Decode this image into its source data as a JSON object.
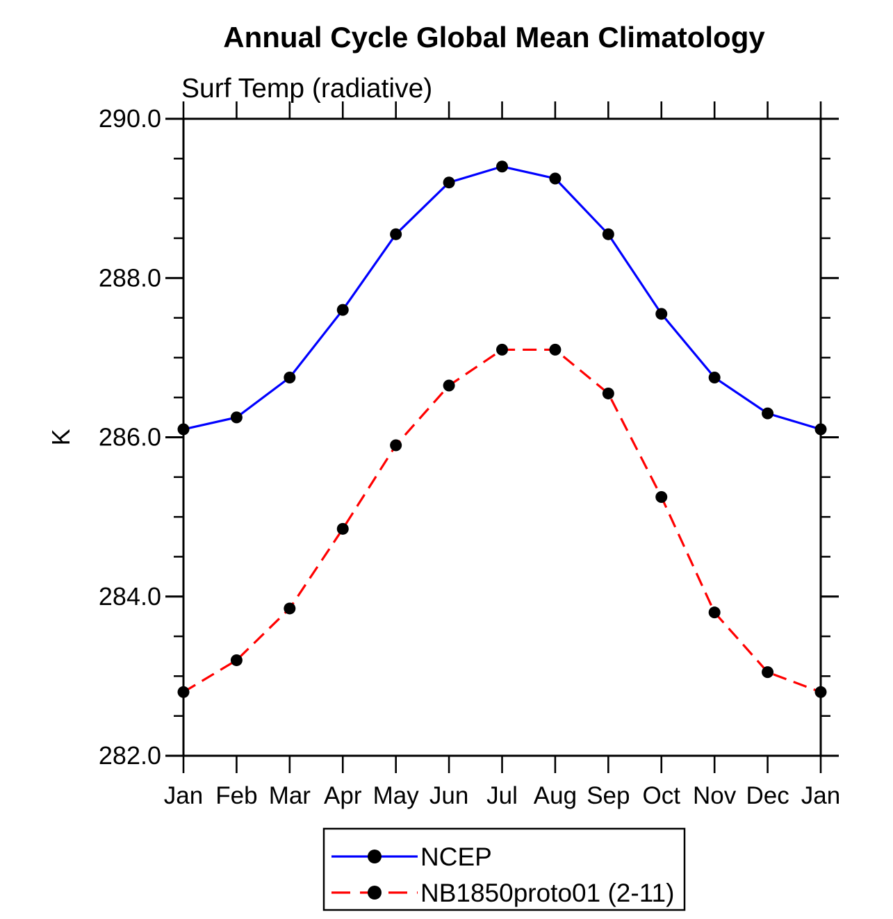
{
  "page": {
    "background": "#ffffff"
  },
  "chart_data": {
    "type": "line",
    "title": "Annual Cycle Global Mean Climatology",
    "subtitle": "Surf Temp (radiative)",
    "xlabel": "",
    "ylabel": "K",
    "categories": [
      "Jan",
      "Feb",
      "Mar",
      "Apr",
      "May",
      "Jun",
      "Jul",
      "Aug",
      "Sep",
      "Oct",
      "Nov",
      "Dec",
      "Jan"
    ],
    "series": [
      {
        "name": "NCEP",
        "color": "#0000ff",
        "line_style": "solid",
        "marker": "filled-circle",
        "marker_color": "#000000",
        "values": [
          286.1,
          286.25,
          286.75,
          287.6,
          288.55,
          289.2,
          289.4,
          289.25,
          288.55,
          287.55,
          286.75,
          286.3,
          286.1
        ]
      },
      {
        "name": "NB1850proto01 (2-11)",
        "color": "#ff0000",
        "line_style": "dashed",
        "marker": "filled-circle",
        "marker_color": "#000000",
        "values": [
          282.8,
          283.2,
          283.85,
          284.85,
          285.9,
          286.65,
          287.1,
          287.1,
          286.55,
          285.25,
          283.8,
          283.05,
          282.8
        ]
      }
    ],
    "ylim": [
      282.0,
      290.0
    ],
    "ytick_major": [
      282.0,
      284.0,
      286.0,
      288.0,
      290.0
    ],
    "ytick_labels": [
      "282.0",
      "284.0",
      "286.0",
      "288.0",
      "290.0"
    ],
    "ytick_minor_step": 0.5,
    "grid": false,
    "frame": "box-with-outward-ticks",
    "axis_color": "#000000",
    "legend_position": "bottom-center"
  }
}
